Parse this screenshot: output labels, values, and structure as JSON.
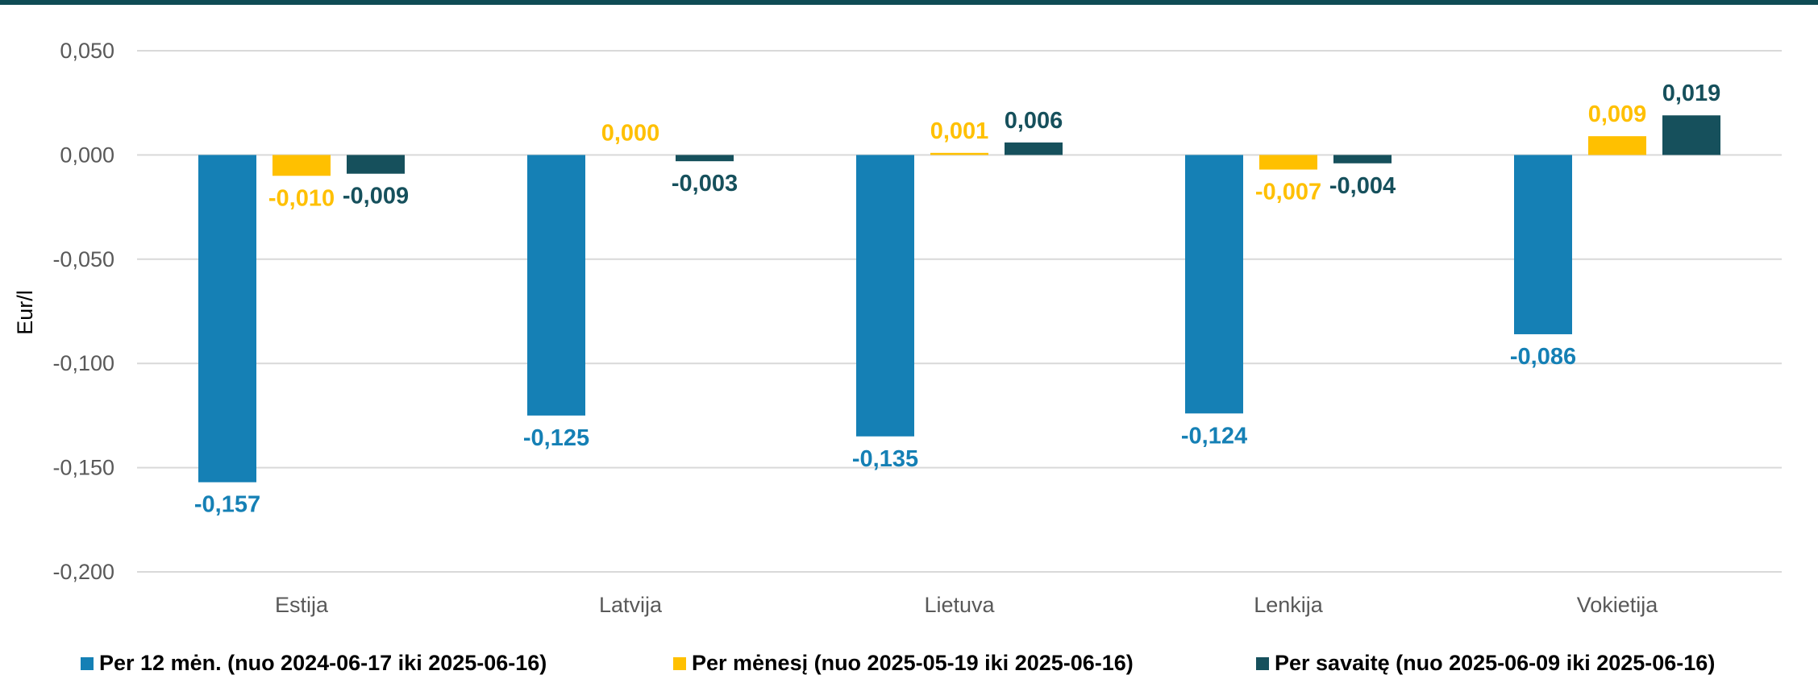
{
  "chart_data": {
    "type": "bar",
    "ylabel": "Eur/l",
    "xlabel": "",
    "ylim": [
      -0.2,
      0.05
    ],
    "yticks": [
      0.05,
      0.0,
      -0.05,
      -0.1,
      -0.15,
      -0.2
    ],
    "ytick_labels": [
      "0,050",
      "0,000",
      "-0,050",
      "-0,100",
      "-0,150",
      "-0,200"
    ],
    "grid": true,
    "legend_position": "bottom",
    "categories": [
      "Estija",
      "Latvija",
      "Lietuva",
      "Lenkija",
      "Vokietija"
    ],
    "series": [
      {
        "name": "Per 12 mėn. (nuo 2024-06-17 iki 2025-06-16)",
        "color": "#1580b5",
        "values": [
          -0.157,
          -0.125,
          -0.135,
          -0.124,
          -0.086
        ],
        "labels": [
          "-0,157",
          "-0,125",
          "-0,135",
          "-0,124",
          "-0,086"
        ]
      },
      {
        "name": "Per mėnesį (nuo 2025-05-19 iki 2025-06-16)",
        "color": "#ffc000",
        "values": [
          -0.01,
          0.0,
          0.001,
          -0.007,
          0.009
        ],
        "labels": [
          "-0,010",
          "0,000",
          "0,001",
          "-0,007",
          "0,009"
        ]
      },
      {
        "name": "Per savaitę (nuo 2025-06-09 iki 2025-06-16)",
        "color": "#16505c",
        "values": [
          -0.009,
          -0.003,
          0.006,
          -0.004,
          0.019
        ],
        "labels": [
          "-0,009",
          "-0,003",
          "0,006",
          "-0,004",
          "0,019"
        ]
      }
    ]
  }
}
